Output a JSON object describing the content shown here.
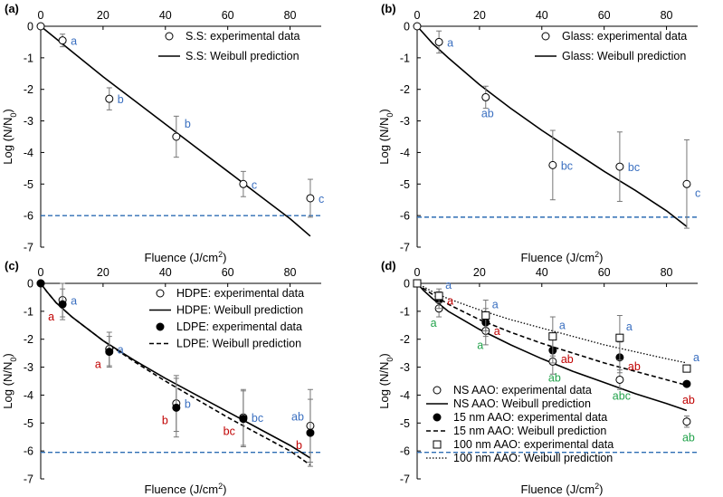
{
  "figure": {
    "xlabel_prefix": "Fluence (J/cm",
    "xlabel_sup": "2",
    "xlabel_suffix": ")"
  },
  "colors": {
    "axis": "#000000",
    "threshold": "#2E6DB4",
    "label_blue": "#3A6FC0",
    "label_red": "#C00000",
    "label_green": "#21A24A"
  },
  "chart_data": [
    {
      "panel": "(a)",
      "type": "scatter",
      "xlabel": "Fluence (J/cm2)",
      "ylabel": "Log (N/N0)",
      "xlim": [
        0,
        90
      ],
      "ylim": [
        -7,
        0
      ],
      "xticks": [
        0,
        20,
        40,
        60,
        80
      ],
      "yticks": [
        0,
        -1,
        -2,
        -3,
        -4,
        -5,
        -6,
        -7
      ],
      "grid": false,
      "legend_position": "top-right",
      "threshold_y": -6,
      "series": [
        {
          "name": "S.S: experimental data",
          "kind": "points",
          "marker": "open-circle",
          "x": [
            0,
            7,
            22,
            43.5,
            65,
            86.5
          ],
          "y": [
            0,
            -0.45,
            -2.3,
            -3.5,
            -5.0,
            -5.45
          ],
          "err": [
            0,
            0.2,
            0.35,
            0.65,
            0.4,
            0.6
          ],
          "labels": [
            {
              "i": 1,
              "text": "a",
              "color": "#3A6FC0",
              "pos": "right"
            },
            {
              "i": 2,
              "text": "b",
              "color": "#3A6FC0",
              "pos": "right"
            },
            {
              "i": 3,
              "text": "b",
              "color": "#3A6FC0",
              "pos": "above"
            },
            {
              "i": 4,
              "text": "c",
              "color": "#3A6FC0",
              "pos": "right"
            },
            {
              "i": 5,
              "text": "c",
              "color": "#3A6FC0",
              "pos": "right"
            }
          ]
        },
        {
          "name": "S.S: Weibull prediction",
          "kind": "curve",
          "dash": "solid",
          "x": [
            0,
            10,
            20,
            30,
            40,
            50,
            60,
            70,
            80,
            86.5
          ],
          "y": [
            0,
            -0.8,
            -1.6,
            -2.35,
            -3.1,
            -3.85,
            -4.6,
            -5.35,
            -6.1,
            -6.65
          ]
        }
      ]
    },
    {
      "panel": "(b)",
      "type": "scatter",
      "xlabel": "Fluence (J/cm2)",
      "ylabel": "Log (N/N0)",
      "xlim": [
        0,
        90
      ],
      "ylim": [
        -7,
        0
      ],
      "xticks": [
        0,
        20,
        40,
        60,
        80
      ],
      "yticks": [
        0,
        -1,
        -2,
        -3,
        -4,
        -5,
        -6,
        -7
      ],
      "grid": false,
      "legend_position": "top-right",
      "threshold_y": -6.05,
      "series": [
        {
          "name": "Glass: experimental data",
          "kind": "points",
          "marker": "open-circle",
          "x": [
            0,
            7,
            22,
            43.5,
            65,
            86.5
          ],
          "y": [
            0,
            -0.5,
            -2.25,
            -4.4,
            -4.45,
            -5.0
          ],
          "err": [
            0,
            0.35,
            0.35,
            1.1,
            1.1,
            1.4
          ],
          "labels": [
            {
              "i": 1,
              "text": "a",
              "color": "#3A6FC0",
              "pos": "right"
            },
            {
              "i": 2,
              "text": "ab",
              "color": "#3A6FC0",
              "pos": "below"
            },
            {
              "i": 3,
              "text": "bc",
              "color": "#3A6FC0",
              "pos": "right"
            },
            {
              "i": 4,
              "text": "bc",
              "color": "#3A6FC0",
              "pos": "right"
            },
            {
              "i": 5,
              "text": "c",
              "color": "#3A6FC0",
              "pos": "right-low"
            }
          ]
        },
        {
          "name": "Glass: Weibull prediction",
          "kind": "curve",
          "dash": "solid",
          "x": [
            0,
            5,
            10,
            20,
            30,
            40,
            50,
            60,
            70,
            80,
            86.5
          ],
          "y": [
            0,
            -0.55,
            -1.0,
            -1.85,
            -2.6,
            -3.3,
            -3.95,
            -4.6,
            -5.2,
            -5.85,
            -6.35
          ]
        }
      ]
    },
    {
      "panel": "(c)",
      "type": "scatter",
      "xlabel": "Fluence (J/cm2)",
      "ylabel": "Log (N/N0)",
      "xlim": [
        0,
        90
      ],
      "ylim": [
        -7,
        0
      ],
      "xticks": [
        0,
        20,
        40,
        60,
        80
      ],
      "yticks": [
        0,
        -1,
        -2,
        -3,
        -4,
        -5,
        -6,
        -7
      ],
      "grid": false,
      "legend_position": "top-right",
      "threshold_y": -6.05,
      "series": [
        {
          "name": "HDPE: experimental data",
          "kind": "points",
          "marker": "open-circle",
          "x": [
            0,
            7,
            22,
            43.5,
            65,
            86.5
          ],
          "y": [
            0,
            -0.6,
            -2.35,
            -4.3,
            -4.8,
            -5.1
          ],
          "err": [
            0,
            0.6,
            0.6,
            1.0,
            1.0,
            1.3
          ],
          "labels": [
            {
              "i": 1,
              "text": "a",
              "color": "#3A6FC0",
              "pos": "right"
            },
            {
              "i": 2,
              "text": "a",
              "color": "#3A6FC0",
              "pos": "right"
            },
            {
              "i": 3,
              "text": "b",
              "color": "#3A6FC0",
              "pos": "right"
            },
            {
              "i": 4,
              "text": "bc",
              "color": "#3A6FC0",
              "pos": "right"
            },
            {
              "i": 5,
              "text": "ab",
              "color": "#3A6FC0",
              "pos": "left-up"
            }
          ]
        },
        {
          "name": "HDPE: Weibull prediction",
          "kind": "curve",
          "dash": "solid",
          "x": [
            0,
            2,
            5,
            10,
            20,
            30,
            40,
            50,
            60,
            70,
            80,
            86.5
          ],
          "y": [
            0,
            -0.3,
            -0.7,
            -1.2,
            -2.05,
            -2.75,
            -3.4,
            -4.0,
            -4.6,
            -5.2,
            -5.8,
            -6.25
          ]
        },
        {
          "name": "LDPE: experimental data",
          "kind": "points",
          "marker": "filled-circle",
          "x": [
            0,
            7,
            22,
            43.5,
            65,
            86.5
          ],
          "y": [
            0,
            -0.75,
            -2.45,
            -4.45,
            -4.85,
            -5.35
          ],
          "err": [
            0,
            0.55,
            0.55,
            1.05,
            1.0,
            1.2
          ],
          "labels": [
            {
              "i": 1,
              "text": "a",
              "color": "#C00000",
              "pos": "left-low"
            },
            {
              "i": 2,
              "text": "a",
              "color": "#C00000",
              "pos": "left-low"
            },
            {
              "i": 3,
              "text": "b",
              "color": "#C00000",
              "pos": "left-low"
            },
            {
              "i": 4,
              "text": "bc",
              "color": "#C00000",
              "pos": "left-low"
            },
            {
              "i": 5,
              "text": "b",
              "color": "#C00000",
              "pos": "left-low"
            }
          ]
        },
        {
          "name": "LDPE: Weibull prediction",
          "kind": "curve",
          "dash": "dashed",
          "x": [
            0,
            2,
            5,
            10,
            20,
            30,
            40,
            50,
            60,
            70,
            80,
            86.5
          ],
          "y": [
            0,
            -0.3,
            -0.7,
            -1.2,
            -2.05,
            -2.8,
            -3.5,
            -4.15,
            -4.8,
            -5.4,
            -6.0,
            -6.5
          ]
        }
      ]
    },
    {
      "panel": "(d)",
      "type": "scatter",
      "xlabel": "Fluence (J/cm2)",
      "ylabel": "Log (N/N0)",
      "xlim": [
        0,
        90
      ],
      "ylim": [
        -7,
        0
      ],
      "xticks": [
        0,
        20,
        40,
        60,
        80
      ],
      "yticks": [
        0,
        -1,
        -2,
        -3,
        -4,
        -5,
        -6,
        -7
      ],
      "grid": false,
      "legend_position": "bottom-left",
      "threshold_y": -6.05,
      "series": [
        {
          "name": "NS AAO: experimental data",
          "kind": "points",
          "marker": "open-circle",
          "x": [
            0,
            7,
            22,
            43.5,
            65,
            86.5
          ],
          "y": [
            0,
            -0.9,
            -1.7,
            -2.8,
            -3.45,
            -4.95
          ],
          "err": [
            0,
            0.3,
            0.5,
            0.45,
            0.35,
            0.2
          ],
          "labels": [
            {
              "i": 1,
              "text": "a",
              "color": "#21A24A",
              "pos": "below-left"
            },
            {
              "i": 2,
              "text": "a",
              "color": "#21A24A",
              "pos": "below-left"
            },
            {
              "i": 3,
              "text": "ab",
              "color": "#21A24A",
              "pos": "below"
            },
            {
              "i": 4,
              "text": "abc",
              "color": "#21A24A",
              "pos": "below"
            },
            {
              "i": 5,
              "text": "ab",
              "color": "#21A24A",
              "pos": "below"
            }
          ]
        },
        {
          "name": "NS AAO: Weibull prediction",
          "kind": "curve",
          "dash": "solid",
          "x": [
            0,
            2,
            5,
            10,
            20,
            30,
            40,
            50,
            60,
            70,
            80,
            86.5
          ],
          "y": [
            0,
            -0.25,
            -0.55,
            -1.0,
            -1.65,
            -2.2,
            -2.7,
            -3.15,
            -3.55,
            -3.95,
            -4.3,
            -4.55
          ]
        },
        {
          "name": "15 nm AAO: experimental data",
          "kind": "points",
          "marker": "filled-circle",
          "x": [
            0,
            7,
            22,
            43.5,
            65,
            86.5
          ],
          "y": [
            0,
            -0.6,
            -1.4,
            -2.4,
            -2.65,
            -3.6
          ],
          "err": [
            0,
            0.3,
            0.5,
            0.45,
            0.55,
            0
          ],
          "labels": [
            {
              "i": 1,
              "text": "a",
              "color": "#C00000",
              "pos": "right"
            },
            {
              "i": 2,
              "text": "a",
              "color": "#C00000",
              "pos": "right-low"
            },
            {
              "i": 3,
              "text": "ab",
              "color": "#C00000",
              "pos": "right-low"
            },
            {
              "i": 4,
              "text": "ab",
              "color": "#C00000",
              "pos": "right-low"
            },
            {
              "i": 5,
              "text": "ab",
              "color": "#C00000",
              "pos": "below"
            }
          ]
        },
        {
          "name": "15 nm AAO: Weibull prediction",
          "kind": "curve",
          "dash": "dashed",
          "x": [
            0,
            2,
            5,
            10,
            20,
            30,
            40,
            50,
            60,
            70,
            80,
            86.5
          ],
          "y": [
            0,
            -0.18,
            -0.4,
            -0.75,
            -1.3,
            -1.75,
            -2.15,
            -2.5,
            -2.85,
            -3.15,
            -3.45,
            -3.65
          ]
        },
        {
          "name": "100 nm AAO: experimental data",
          "kind": "points",
          "marker": "open-square",
          "x": [
            0,
            7,
            22,
            43.5,
            65,
            86.5
          ],
          "y": [
            0,
            -0.45,
            -1.15,
            -1.9,
            -1.95,
            -3.05
          ],
          "err": [
            0,
            0.25,
            0.55,
            0.7,
            0.8,
            0
          ],
          "labels": [
            {
              "i": 1,
              "text": "a",
              "color": "#3A6FC0",
              "pos": "above-right"
            },
            {
              "i": 2,
              "text": "a",
              "color": "#3A6FC0",
              "pos": "above-right"
            },
            {
              "i": 3,
              "text": "a",
              "color": "#3A6FC0",
              "pos": "above-right"
            },
            {
              "i": 4,
              "text": "a",
              "color": "#3A6FC0",
              "pos": "above-right"
            },
            {
              "i": 5,
              "text": "a",
              "color": "#3A6FC0",
              "pos": "above-right"
            }
          ]
        },
        {
          "name": "100 nm AAO: Weibull prediction",
          "kind": "curve",
          "dash": "dotted",
          "x": [
            0,
            2,
            5,
            10,
            20,
            30,
            40,
            50,
            60,
            70,
            80,
            86.5
          ],
          "y": [
            0,
            -0.12,
            -0.3,
            -0.55,
            -0.95,
            -1.3,
            -1.6,
            -1.9,
            -2.2,
            -2.45,
            -2.7,
            -2.85
          ]
        }
      ]
    }
  ]
}
